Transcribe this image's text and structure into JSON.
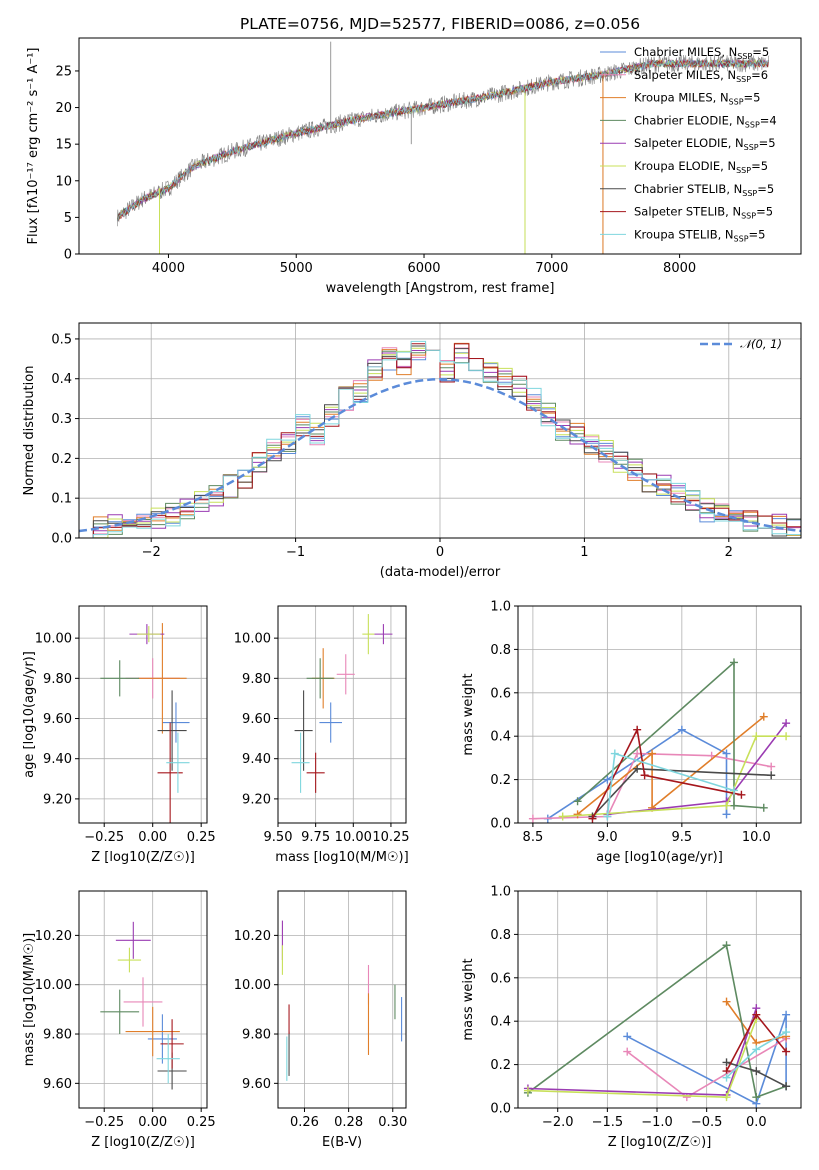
{
  "title": "PLATE=0756, MJD=52577, FIBERID=0086, z=0.056",
  "colors": {
    "data": "#808080",
    "series": [
      "#5b8bd9",
      "#e887b8",
      "#e07e2a",
      "#5e8a61",
      "#9a3bb2",
      "#c8e05a",
      "#4a4a4a",
      "#a5171d",
      "#7fd6de"
    ],
    "gauss": "#5b8bd9"
  },
  "legend": [
    {
      "label": "Chabrier MILES, N",
      "sub": "SSP",
      "suffix": "=5"
    },
    {
      "label": "Salpeter MILES, N",
      "sub": "SSP",
      "suffix": "=6"
    },
    {
      "label": "Kroupa MILES, N",
      "sub": "SSP",
      "suffix": "=5"
    },
    {
      "label": "Chabrier ELODIE, N",
      "sub": "SSP",
      "suffix": "=4"
    },
    {
      "label": "Salpeter ELODIE, N",
      "sub": "SSP",
      "suffix": "=5"
    },
    {
      "label": "Kroupa ELODIE, N",
      "sub": "SSP",
      "suffix": "=5"
    },
    {
      "label": "Chabrier STELIB, N",
      "sub": "SSP",
      "suffix": "=5"
    },
    {
      "label": "Salpeter STELIB, N",
      "sub": "SSP",
      "suffix": "=5"
    },
    {
      "label": "Kroupa STELIB, N",
      "sub": "SSP",
      "suffix": "=5"
    }
  ],
  "chart_data": [
    {
      "id": "spectrum",
      "type": "line",
      "xlabel": "wavelength [Angstrom, rest frame]",
      "ylabel": "Flux [fλ10⁻¹⁷ erg cm⁻² s⁻¹ A⁻¹]",
      "xlim": [
        3300,
        8950
      ],
      "ylim": [
        0,
        29.5
      ],
      "xticks": [
        4000,
        5000,
        6000,
        7000,
        8000
      ],
      "yticks": [
        0,
        5,
        10,
        15,
        20,
        25
      ],
      "continuum": [
        [
          3600,
          5
        ],
        [
          3800,
          7.5
        ],
        [
          4000,
          9
        ],
        [
          4200,
          12
        ],
        [
          4500,
          14
        ],
        [
          5000,
          16.5
        ],
        [
          5500,
          18.5
        ],
        [
          6000,
          20
        ],
        [
          6500,
          21.5
        ],
        [
          7000,
          23.5
        ],
        [
          7400,
          24.5
        ],
        [
          7800,
          26
        ],
        [
          8300,
          26
        ],
        [
          8700,
          26
        ]
      ],
      "spikes": [
        [
          5270,
          29
        ],
        [
          3930,
          0
        ],
        [
          6790,
          0
        ],
        [
          7400,
          0
        ],
        [
          5900,
          15
        ]
      ]
    },
    {
      "id": "residuals",
      "type": "step",
      "xlabel": "(data-model)/error",
      "ylabel": "Normed distribution",
      "xlim": [
        -2.5,
        2.5
      ],
      "ylim": [
        0,
        0.54
      ],
      "xticks": [
        -2,
        -1,
        0,
        1,
        2
      ],
      "yticks": [
        0.0,
        0.1,
        0.2,
        0.3,
        0.4,
        0.5
      ],
      "bins": [
        -2.5,
        -2.4,
        -2.3,
        -2.2,
        -2.1,
        -2.0,
        -1.9,
        -1.8,
        -1.7,
        -1.6,
        -1.5,
        -1.4,
        -1.3,
        -1.2,
        -1.1,
        -1.0,
        -0.9,
        -0.8,
        -0.7,
        -0.6,
        -0.5,
        -0.4,
        -0.3,
        -0.2,
        -0.1,
        0.0,
        0.1,
        0.2,
        0.3,
        0.4,
        0.5,
        0.6,
        0.7,
        0.8,
        0.9,
        1.0,
        1.1,
        1.2,
        1.3,
        1.4,
        1.5,
        1.6,
        1.7,
        1.8,
        1.9,
        2.0,
        2.1,
        2.2,
        2.3,
        2.4,
        2.5
      ],
      "hist": [
        0.02,
        0.03,
        0.03,
        0.04,
        0.04,
        0.05,
        0.06,
        0.07,
        0.09,
        0.11,
        0.13,
        0.15,
        0.19,
        0.22,
        0.24,
        0.28,
        0.26,
        0.31,
        0.35,
        0.37,
        0.42,
        0.45,
        0.44,
        0.47,
        0.45,
        0.42,
        0.46,
        0.44,
        0.42,
        0.4,
        0.38,
        0.35,
        0.31,
        0.27,
        0.26,
        0.24,
        0.22,
        0.19,
        0.17,
        0.14,
        0.13,
        0.11,
        0.09,
        0.07,
        0.06,
        0.05,
        0.04,
        0.03,
        0.03,
        0.02
      ],
      "legend": "𝒩(0, 1)"
    },
    {
      "id": "age-vs-Z",
      "type": "errorbar",
      "xlabel": "Z [log10(Z/Z☉)]",
      "ylabel": "age  [log10(age/yr)]",
      "xlim": [
        -0.38,
        0.28
      ],
      "ylim": [
        9.08,
        10.16
      ],
      "xticks": [
        -0.25,
        0.0,
        0.25
      ],
      "yticks": [
        9.2,
        9.4,
        9.6,
        9.8,
        10.0
      ],
      "points": [
        {
          "x": 0.12,
          "y": 9.58,
          "xe": 0.14,
          "ye": 0.2
        },
        {
          "x": 0.0,
          "y": 9.8,
          "xe": 0.28,
          "ye": 0.2
        },
        {
          "x": 0.05,
          "y": 9.8,
          "xe": 0.25,
          "ye": 0.55
        },
        {
          "x": -0.17,
          "y": 9.8,
          "xe": 0.2,
          "ye": 0.18
        },
        {
          "x": -0.03,
          "y": 10.02,
          "xe": 0.18,
          "ye": 0.1
        },
        {
          "x": -0.02,
          "y": 10.02,
          "xe": 0.12,
          "ye": 0.08
        },
        {
          "x": 0.1,
          "y": 9.54,
          "xe": 0.15,
          "ye": 0.4
        },
        {
          "x": 0.09,
          "y": 9.33,
          "xe": 0.13,
          "ye": 0.5
        },
        {
          "x": 0.13,
          "y": 9.38,
          "xe": 0.12,
          "ye": 0.3
        }
      ]
    },
    {
      "id": "age-vs-mass",
      "type": "errorbar",
      "xlabel": "mass [log10(M/M☉)]",
      "ylabel": "",
      "xlim": [
        9.5,
        10.35
      ],
      "ylim": [
        9.08,
        10.16
      ],
      "xticks": [
        9.5,
        9.75,
        10.0,
        10.25
      ],
      "yticks": [
        9.2,
        9.4,
        9.6,
        9.8,
        10.0
      ],
      "points": [
        {
          "x": 9.85,
          "y": 9.58,
          "xe": 0.15,
          "ye": 0.2
        },
        {
          "x": 9.95,
          "y": 9.82,
          "xe": 0.12,
          "ye": 0.2
        },
        {
          "x": 9.8,
          "y": 9.8,
          "xe": 0.15,
          "ye": 0.3
        },
        {
          "x": 9.78,
          "y": 9.8,
          "xe": 0.18,
          "ye": 0.2
        },
        {
          "x": 10.2,
          "y": 10.02,
          "xe": 0.12,
          "ye": 0.1
        },
        {
          "x": 10.1,
          "y": 10.02,
          "xe": 0.08,
          "ye": 0.2
        },
        {
          "x": 9.67,
          "y": 9.54,
          "xe": 0.12,
          "ye": 0.4
        },
        {
          "x": 9.75,
          "y": 9.33,
          "xe": 0.12,
          "ye": 0.2
        },
        {
          "x": 9.65,
          "y": 9.38,
          "xe": 0.12,
          "ye": 0.3
        }
      ]
    },
    {
      "id": "massweight-vs-age",
      "type": "line",
      "xlabel": "age  [log10(age/yr)]",
      "ylabel": "mass weight",
      "xlim": [
        8.4,
        10.3
      ],
      "ylim": [
        0,
        1
      ],
      "xticks": [
        8.5,
        9.0,
        9.5,
        10.0
      ],
      "yticks": [
        0.0,
        0.2,
        0.4,
        0.6,
        0.8,
        1.0
      ],
      "series": [
        [
          [
            8.6,
            0.02
          ],
          [
            9.0,
            0.2
          ],
          [
            9.5,
            0.43
          ],
          [
            9.8,
            0.32
          ],
          [
            9.8,
            0.04
          ]
        ],
        [
          [
            8.5,
            0.02
          ],
          [
            9.0,
            0.03
          ],
          [
            9.2,
            0.32
          ],
          [
            9.7,
            0.31
          ],
          [
            10.1,
            0.26
          ]
        ],
        [
          [
            8.8,
            0.04
          ],
          [
            9.3,
            0.32
          ],
          [
            9.3,
            0.07
          ],
          [
            10.05,
            0.49
          ]
        ],
        [
          [
            8.8,
            0.1
          ],
          [
            9.85,
            0.74
          ],
          [
            9.85,
            0.08
          ],
          [
            10.05,
            0.07
          ]
        ],
        [
          [
            9.0,
            0.04
          ],
          [
            9.8,
            0.1
          ],
          [
            10.2,
            0.46
          ]
        ],
        [
          [
            8.7,
            0.03
          ],
          [
            9.8,
            0.08
          ],
          [
            10.0,
            0.4
          ],
          [
            10.2,
            0.4
          ]
        ],
        [
          [
            8.9,
            0.03
          ],
          [
            9.2,
            0.25
          ],
          [
            10.1,
            0.22
          ]
        ],
        [
          [
            8.9,
            0.02
          ],
          [
            9.2,
            0.43
          ],
          [
            9.25,
            0.22
          ],
          [
            9.9,
            0.13
          ]
        ],
        [
          [
            9.0,
            0.03
          ],
          [
            9.05,
            0.32
          ],
          [
            9.85,
            0.15
          ]
        ]
      ]
    },
    {
      "id": "mass-vs-Z",
      "type": "errorbar",
      "xlabel": "Z [log10(Z/Z☉)]",
      "ylabel": "mass [log10(M/M☉)]",
      "xlim": [
        -0.38,
        0.28
      ],
      "ylim": [
        9.5,
        10.38
      ],
      "xticks": [
        -0.25,
        0.0,
        0.25
      ],
      "yticks": [
        9.6,
        9.8,
        10.0,
        10.2
      ],
      "points": [
        {
          "x": 0.05,
          "y": 9.78,
          "xe": 0.15,
          "ye": 0.2
        },
        {
          "x": -0.05,
          "y": 9.93,
          "xe": 0.2,
          "ye": 0.2
        },
        {
          "x": 0.0,
          "y": 9.81,
          "xe": 0.28,
          "ye": 0.2
        },
        {
          "x": -0.17,
          "y": 9.89,
          "xe": 0.2,
          "ye": 0.18
        },
        {
          "x": -0.1,
          "y": 10.18,
          "xe": 0.18,
          "ye": 0.15
        },
        {
          "x": -0.12,
          "y": 10.1,
          "xe": 0.12,
          "ye": 0.1
        },
        {
          "x": 0.1,
          "y": 9.65,
          "xe": 0.15,
          "ye": 0.15
        },
        {
          "x": 0.1,
          "y": 9.76,
          "xe": 0.12,
          "ye": 0.2
        },
        {
          "x": 0.08,
          "y": 9.7,
          "xe": 0.12,
          "ye": 0.2
        }
      ]
    },
    {
      "id": "mass-vs-EBV",
      "type": "errorbar",
      "xlabel": "E(B-V)",
      "ylabel": "",
      "xlim": [
        0.248,
        0.306
      ],
      "ylim": [
        9.5,
        10.38
      ],
      "xticks": [
        0.26,
        0.28,
        0.3
      ],
      "yticks": [
        9.6,
        9.8,
        10.0,
        10.2
      ],
      "points": [
        {
          "x": 0.304,
          "y": 9.86,
          "xe": 0,
          "ye": 0.18
        },
        {
          "x": 0.289,
          "y": 10.0,
          "xe": 0,
          "ye": 0.16
        },
        {
          "x": 0.289,
          "y": 9.84,
          "xe": 0,
          "ye": 0.25
        },
        {
          "x": 0.301,
          "y": 9.93,
          "xe": 0,
          "ye": 0.14
        },
        {
          "x": 0.25,
          "y": 10.18,
          "xe": 0,
          "ye": 0.16
        },
        {
          "x": 0.25,
          "y": 10.1,
          "xe": 0,
          "ye": 0.12
        },
        {
          "x": 0.253,
          "y": 9.72,
          "xe": 0,
          "ye": 0.18
        },
        {
          "x": 0.253,
          "y": 9.86,
          "xe": 0,
          "ye": 0.12
        },
        {
          "x": 0.252,
          "y": 9.7,
          "xe": 0,
          "ye": 0.18
        }
      ]
    },
    {
      "id": "massweight-vs-Z",
      "type": "line",
      "xlabel": "Z [log10(Z/Z☉)]",
      "ylabel": "mass weight",
      "xlim": [
        -2.4,
        0.45
      ],
      "ylim": [
        0,
        1
      ],
      "xticks": [
        -2.0,
        -1.5,
        -1.0,
        -0.5,
        0.0
      ],
      "yticks": [
        0.0,
        0.2,
        0.4,
        0.6,
        0.8,
        1.0
      ],
      "series": [
        [
          [
            -1.3,
            0.33
          ],
          [
            0.0,
            0.02
          ],
          [
            0.3,
            0.43
          ],
          [
            0.3,
            0.1
          ]
        ],
        [
          [
            -1.3,
            0.26
          ],
          [
            -0.7,
            0.05
          ],
          [
            0.3,
            0.32
          ]
        ],
        [
          [
            -0.3,
            0.49
          ],
          [
            0.0,
            0.3
          ],
          [
            0.3,
            0.33
          ]
        ],
        [
          [
            -2.3,
            0.07
          ],
          [
            -0.3,
            0.75
          ],
          [
            0.0,
            0.05
          ],
          [
            0.3,
            0.1
          ]
        ],
        [
          [
            -2.3,
            0.09
          ],
          [
            -0.3,
            0.06
          ],
          [
            0.0,
            0.46
          ]
        ],
        [
          [
            -2.3,
            0.08
          ],
          [
            -0.3,
            0.05
          ],
          [
            0.0,
            0.41
          ]
        ],
        [
          [
            -0.3,
            0.21
          ],
          [
            0.0,
            0.17
          ],
          [
            0.3,
            0.1
          ]
        ],
        [
          [
            -0.3,
            0.17
          ],
          [
            0.0,
            0.43
          ],
          [
            0.3,
            0.26
          ]
        ],
        [
          [
            -0.3,
            0.14
          ],
          [
            0.0,
            0.27
          ],
          [
            0.3,
            0.35
          ]
        ]
      ]
    }
  ]
}
